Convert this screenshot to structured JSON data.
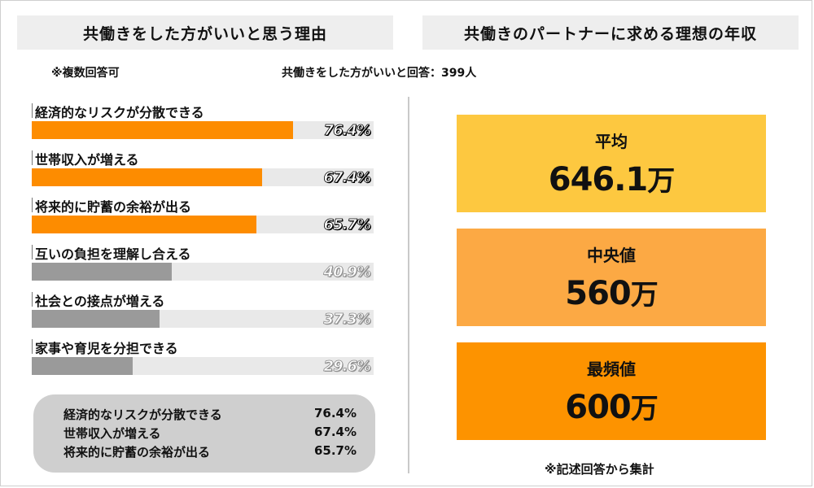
{
  "left_panel": {
    "title": "共働きをした方がいいと思う理由",
    "note": "※複数回答可",
    "respondents": "共働きをした方がいいと回答：399人"
  },
  "right_panel": {
    "title": "共働きのパートナーに求める理想の年収",
    "footnote": "※記述回答から集計",
    "stats": [
      {
        "label": "平均",
        "value": "646.1",
        "unit": "万",
        "color": "#fdc840"
      },
      {
        "label": "中央値",
        "value": "560",
        "unit": "万",
        "color": "#fca944"
      },
      {
        "label": "最頻値",
        "value": "600",
        "unit": "万",
        "color": "#fd9300"
      }
    ]
  },
  "summary": [
    {
      "label": "経済的なリスクが分散できる",
      "value": "76.4%"
    },
    {
      "label": "世帯収入が増える",
      "value": "67.4%"
    },
    {
      "label": "将来的に貯蓄の余裕が出る",
      "value": "65.7%"
    }
  ],
  "colors": {
    "top3": "#fd8c00",
    "others": "#9a9a9a",
    "track": "#e9e9e9"
  },
  "chart_data": {
    "type": "bar",
    "orientation": "horizontal",
    "title": "共働きをした方がいいと思う理由",
    "categories": [
      "経済的なリスクが分散できる",
      "世帯収入が増える",
      "将来的に貯蓄の余裕が出る",
      "互いの負担を理解し合える",
      "社会との接点が増える",
      "家事や育児を分担できる"
    ],
    "values": [
      76.4,
      67.4,
      65.7,
      40.9,
      37.3,
      29.6
    ],
    "value_labels": [
      "76.4%",
      "67.4%",
      "65.7%",
      "40.9%",
      "37.3%",
      "29.6%"
    ],
    "unit": "%",
    "xlim": [
      0,
      100
    ],
    "highlight_top": 3,
    "grid": false,
    "legend": "none"
  }
}
